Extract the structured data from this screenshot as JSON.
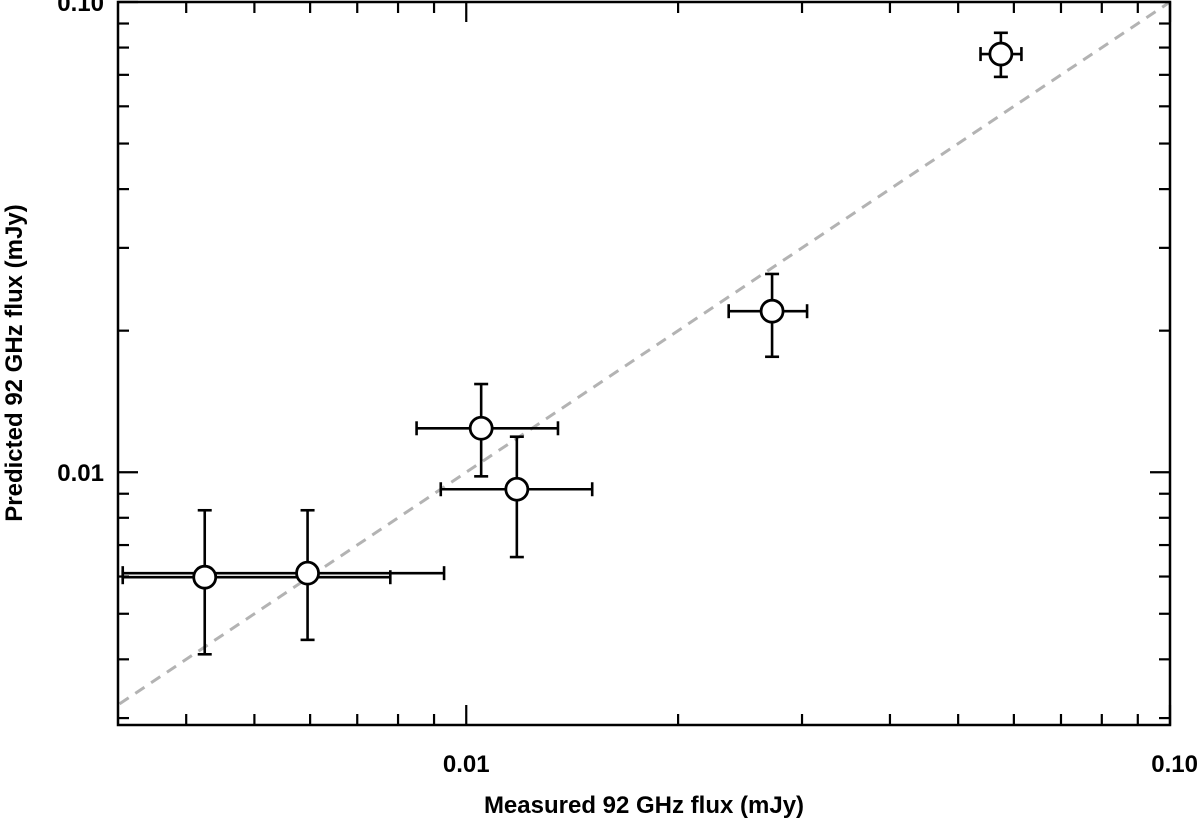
{
  "chart_data": {
    "type": "scatter",
    "xlabel": "Measured 92 GHz flux (mJy)",
    "ylabel": "Predicted 92 GHz flux (mJy)",
    "xscale": "log",
    "yscale": "log",
    "xlim": [
      0.0032,
      0.1
    ],
    "ylim": [
      0.0029,
      0.1
    ],
    "x_tick_labels": [
      {
        "value": 0.01,
        "label": "0.01"
      },
      {
        "value": 0.1,
        "label": "0.10"
      }
    ],
    "y_tick_labels": [
      {
        "value": 0.01,
        "label": "0.01"
      },
      {
        "value": 0.1,
        "label": "0.10"
      }
    ],
    "reference_line": {
      "style": "dashed",
      "color": "#b3b3b3",
      "relation": "y = x"
    },
    "points": [
      {
        "x": 0.00425,
        "y": 0.00598,
        "xerr_lo": 0.00325,
        "xerr_hi": 0.0078,
        "yerr_lo": 0.0041,
        "yerr_hi": 0.0083
      },
      {
        "x": 0.00595,
        "y": 0.0061,
        "xerr_lo": 0.00325,
        "xerr_hi": 0.0093,
        "yerr_lo": 0.0044,
        "yerr_hi": 0.0083
      },
      {
        "x": 0.0105,
        "y": 0.0124,
        "xerr_lo": 0.0085,
        "xerr_hi": 0.0135,
        "yerr_lo": 0.0098,
        "yerr_hi": 0.0154
      },
      {
        "x": 0.0118,
        "y": 0.0092,
        "xerr_lo": 0.0092,
        "xerr_hi": 0.0151,
        "yerr_lo": 0.0066,
        "yerr_hi": 0.0119
      },
      {
        "x": 0.0272,
        "y": 0.022,
        "xerr_lo": 0.0236,
        "xerr_hi": 0.0305,
        "yerr_lo": 0.0176,
        "yerr_hi": 0.0264
      },
      {
        "x": 0.0575,
        "y": 0.0775,
        "xerr_lo": 0.0538,
        "xerr_hi": 0.0615,
        "yerr_lo": 0.0693,
        "yerr_hi": 0.086
      }
    ],
    "marker": {
      "shape": "open-circle",
      "fill": "#ffffff",
      "stroke": "#000000"
    },
    "grid": false,
    "legend": "none"
  }
}
